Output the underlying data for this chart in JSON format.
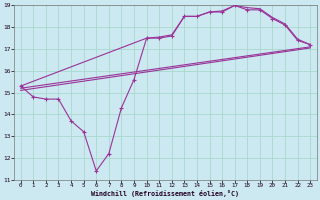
{
  "xlabel": "Windchill (Refroidissement éolien,°C)",
  "background_color": "#cce8f0",
  "grid_color": "#a8d8cc",
  "line_color": "#993399",
  "xlim": [
    -0.5,
    23.5
  ],
  "ylim": [
    11,
    19
  ],
  "xticks": [
    0,
    1,
    2,
    3,
    4,
    5,
    6,
    7,
    8,
    9,
    10,
    11,
    12,
    13,
    14,
    15,
    16,
    17,
    18,
    19,
    20,
    21,
    22,
    23
  ],
  "yticks": [
    11,
    12,
    13,
    14,
    15,
    16,
    17,
    18,
    19
  ],
  "main_x": [
    0,
    1,
    2,
    3,
    4,
    5,
    6,
    7,
    8,
    9,
    10,
    11,
    12,
    13,
    14,
    15,
    16,
    17,
    18,
    19,
    20,
    21,
    22,
    23
  ],
  "main_y": [
    15.3,
    14.8,
    14.7,
    14.7,
    13.7,
    13.2,
    11.4,
    12.2,
    14.3,
    15.6,
    17.5,
    17.5,
    17.6,
    18.5,
    18.5,
    18.7,
    18.7,
    19.0,
    18.8,
    18.8,
    18.4,
    18.1,
    17.4,
    17.2
  ],
  "trend1_x": [
    0,
    23
  ],
  "trend1_y": [
    15.2,
    17.1
  ],
  "trend2_x": [
    0,
    23
  ],
  "trend2_y": [
    15.1,
    17.05
  ],
  "upper_x": [
    0,
    10,
    11,
    12,
    13,
    14,
    15,
    16,
    17,
    18,
    19,
    20,
    21,
    22,
    23
  ],
  "upper_y": [
    15.3,
    17.5,
    17.55,
    17.65,
    18.5,
    18.5,
    18.7,
    18.75,
    19.0,
    18.9,
    18.85,
    18.45,
    18.15,
    17.45,
    17.2
  ]
}
